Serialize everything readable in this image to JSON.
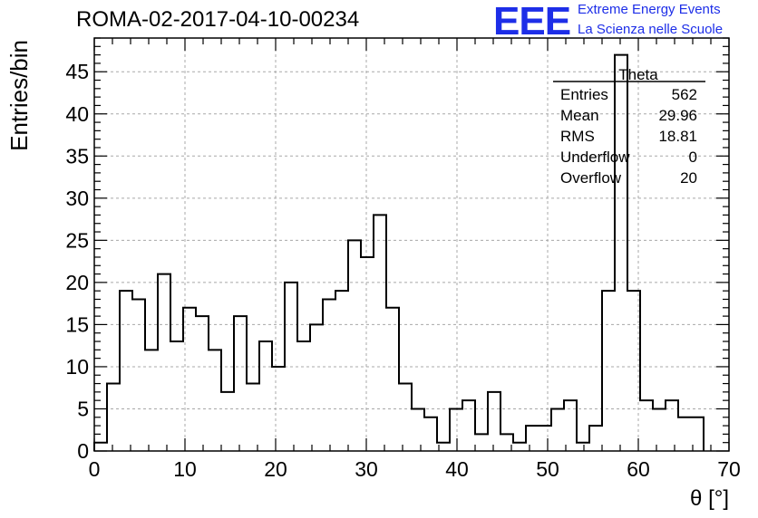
{
  "run_title": "ROMA-02-2017-04-10-00234",
  "logo": {
    "mark": "EEE",
    "line1": "Extreme Energy Events",
    "line2": "La Scienza nelle Scuole",
    "color": "#1d2ee8"
  },
  "chart_data": {
    "type": "bar",
    "histogram": true,
    "xlabel": "θ [°]",
    "ylabel": "Entries/bin",
    "xlim": [
      0,
      70
    ],
    "ylim": [
      0,
      49
    ],
    "x_ticks": [
      0,
      10,
      20,
      30,
      40,
      50,
      60,
      70
    ],
    "y_ticks": [
      0,
      5,
      10,
      15,
      20,
      25,
      30,
      35,
      40,
      45
    ],
    "grid": true,
    "bin_width": 1.4,
    "x_start": 0,
    "values": [
      1,
      8,
      19,
      18,
      12,
      21,
      13,
      17,
      16,
      12,
      7,
      16,
      8,
      13,
      10,
      20,
      13,
      15,
      18,
      19,
      25,
      23,
      28,
      17,
      8,
      5,
      4,
      1,
      5,
      6,
      2,
      7,
      2,
      1,
      3,
      3,
      5,
      6,
      1,
      3,
      19,
      47,
      19,
      6,
      5,
      6,
      4,
      4
    ],
    "line_color": "#000000",
    "stats": {
      "title": "Theta",
      "rows": [
        {
          "label": "Entries",
          "value": "562"
        },
        {
          "label": "Mean",
          "value": "29.96"
        },
        {
          "label": "RMS",
          "value": "18.81"
        },
        {
          "label": "Underflow",
          "value": "0"
        },
        {
          "label": "Overflow",
          "value": "20"
        }
      ]
    }
  }
}
